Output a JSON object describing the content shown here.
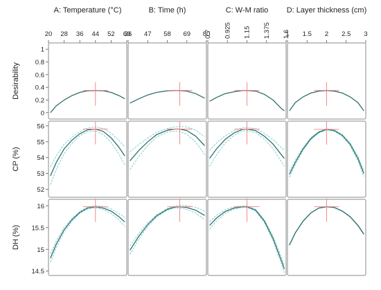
{
  "chart_data": {
    "type": "line",
    "colors": {
      "main": "#2f6f6b",
      "band": "#8fd3d6",
      "crosshair": "#f07e7e",
      "frame": "#8a8a8a"
    },
    "columns": [
      {
        "title": "A: Temperature (°C)",
        "xlim": [
          20,
          60
        ],
        "ticks": [
          20,
          28,
          36,
          44,
          52,
          60
        ],
        "tick_labels": [
          "20",
          "28",
          "36",
          "44",
          "52",
          "60"
        ],
        "rotate_ticks": false,
        "optimum": 44
      },
      {
        "title": "B: Time (h)",
        "xlim": [
          36,
          80
        ],
        "ticks": [
          36,
          47,
          58,
          69,
          80
        ],
        "tick_labels": [
          "36",
          "47",
          "58",
          "69",
          "80"
        ],
        "rotate_ticks": false,
        "optimum": 65
      },
      {
        "title": "C: W-M ratio",
        "xlim": [
          0.7,
          1.6
        ],
        "ticks": [
          0.7,
          0.925,
          1.15,
          1.375,
          1.6
        ],
        "tick_labels": [
          "0.7",
          "0.925",
          "1.15",
          "1.375",
          "1.6"
        ],
        "rotate_ticks": true,
        "optimum": 1.15
      },
      {
        "title": "D: Layer thickness (cm)",
        "xlim": [
          1,
          3
        ],
        "ticks": [
          1,
          1.5,
          2,
          2.5,
          3
        ],
        "tick_labels": [
          "1",
          "1.5",
          "2",
          "2.5",
          "3"
        ],
        "rotate_ticks": false,
        "optimum": 2.0
      }
    ],
    "rows": [
      {
        "label": "Desirability",
        "ylim": [
          -0.1,
          1.1
        ],
        "ticks": [
          0,
          0.2,
          0.4,
          0.6,
          0.8,
          1
        ],
        "tick_labels": [
          "0",
          "0.2",
          "0.4",
          "0.6",
          "0.8",
          "1"
        ],
        "has_band": false,
        "panels": [
          {
            "x": [
              21,
              24,
              28,
              32,
              36,
              40,
              44,
              48,
              52,
              56,
              59
            ],
            "y": [
              0.0,
              0.11,
              0.2,
              0.27,
              0.32,
              0.345,
              0.35,
              0.345,
              0.32,
              0.27,
              0.22
            ],
            "band": 0
          },
          {
            "x": [
              37,
              42,
              47,
              52,
              58,
              62,
              65,
              69,
              74,
              79
            ],
            "y": [
              0.15,
              0.22,
              0.28,
              0.32,
              0.345,
              0.35,
              0.35,
              0.34,
              0.3,
              0.23
            ],
            "band": 0
          },
          {
            "x": [
              0.72,
              0.8,
              0.9,
              1.0,
              1.1,
              1.15,
              1.25,
              1.35,
              1.45,
              1.55,
              1.58
            ],
            "y": [
              0.18,
              0.24,
              0.3,
              0.33,
              0.35,
              0.35,
              0.34,
              0.29,
              0.2,
              0.06,
              0.03
            ],
            "band": 0
          },
          {
            "x": [
              1.05,
              1.2,
              1.4,
              1.6,
              1.8,
              2.0,
              2.2,
              2.4,
              2.6,
              2.8,
              2.95
            ],
            "y": [
              0.03,
              0.16,
              0.25,
              0.31,
              0.34,
              0.35,
              0.34,
              0.31,
              0.25,
              0.16,
              0.03
            ],
            "band": 0
          }
        ]
      },
      {
        "label": "CP (%)",
        "ylim": [
          51.5,
          56.3
        ],
        "ticks": [
          52,
          53,
          54,
          55,
          56
        ],
        "tick_labels": [
          "52",
          "53",
          "54",
          "55",
          "56"
        ],
        "has_band": true,
        "panels": [
          {
            "x": [
              21,
              24,
              28,
              32,
              36,
              40,
              44,
              48,
              52,
              56,
              59
            ],
            "y": [
              52.85,
              53.7,
              54.55,
              55.1,
              55.5,
              55.75,
              55.8,
              55.65,
              55.25,
              54.65,
              54.1
            ],
            "band": 0.45
          },
          {
            "x": [
              37,
              42,
              47,
              52,
              58,
              62,
              65,
              69,
              74,
              79
            ],
            "y": [
              53.8,
              54.45,
              55.0,
              55.45,
              55.72,
              55.8,
              55.8,
              55.7,
              55.35,
              54.75
            ],
            "band": 0.45
          },
          {
            "x": [
              0.72,
              0.8,
              0.9,
              1.0,
              1.1,
              1.15,
              1.25,
              1.35,
              1.45,
              1.55,
              1.58
            ],
            "y": [
              53.95,
              54.55,
              55.15,
              55.55,
              55.78,
              55.8,
              55.7,
              55.35,
              54.85,
              54.15,
              53.95
            ],
            "band": 0.4
          },
          {
            "x": [
              1.05,
              1.2,
              1.4,
              1.6,
              1.8,
              2.0,
              2.2,
              2.4,
              2.6,
              2.8,
              2.95
            ],
            "y": [
              52.95,
              53.7,
              54.55,
              55.2,
              55.6,
              55.78,
              55.7,
              55.4,
              54.85,
              53.95,
              53.0
            ],
            "band": 0.15
          }
        ]
      },
      {
        "label": "DH (%)",
        "ylim": [
          14.4,
          16.15
        ],
        "ticks": [
          14.5,
          15,
          15.5,
          16
        ],
        "tick_labels": [
          "14.5",
          "15",
          "15.5",
          "16"
        ],
        "has_band": true,
        "panels": [
          {
            "x": [
              21,
              24,
              28,
              32,
              36,
              40,
              44,
              48,
              52,
              56,
              59
            ],
            "y": [
              14.8,
              15.12,
              15.45,
              15.68,
              15.85,
              15.95,
              15.98,
              15.95,
              15.88,
              15.75,
              15.63
            ],
            "band": 0.08
          },
          {
            "x": [
              37,
              42,
              47,
              52,
              58,
              62,
              65,
              69,
              74,
              79
            ],
            "y": [
              14.98,
              15.3,
              15.57,
              15.77,
              15.92,
              15.97,
              15.98,
              15.96,
              15.9,
              15.78
            ],
            "band": 0.08
          },
          {
            "x": [
              0.72,
              0.8,
              0.9,
              1.0,
              1.1,
              1.15,
              1.25,
              1.35,
              1.45,
              1.55,
              1.58
            ],
            "y": [
              15.55,
              15.72,
              15.87,
              15.95,
              15.98,
              15.98,
              15.9,
              15.65,
              15.25,
              14.72,
              14.55
            ],
            "band": 0.07
          },
          {
            "x": [
              1.05,
              1.2,
              1.4,
              1.6,
              1.8,
              2.0,
              2.2,
              2.4,
              2.6,
              2.8,
              2.95
            ],
            "y": [
              15.1,
              15.38,
              15.65,
              15.84,
              15.95,
              15.98,
              15.96,
              15.88,
              15.75,
              15.55,
              15.35
            ],
            "band": 0.01
          }
        ]
      }
    ]
  }
}
